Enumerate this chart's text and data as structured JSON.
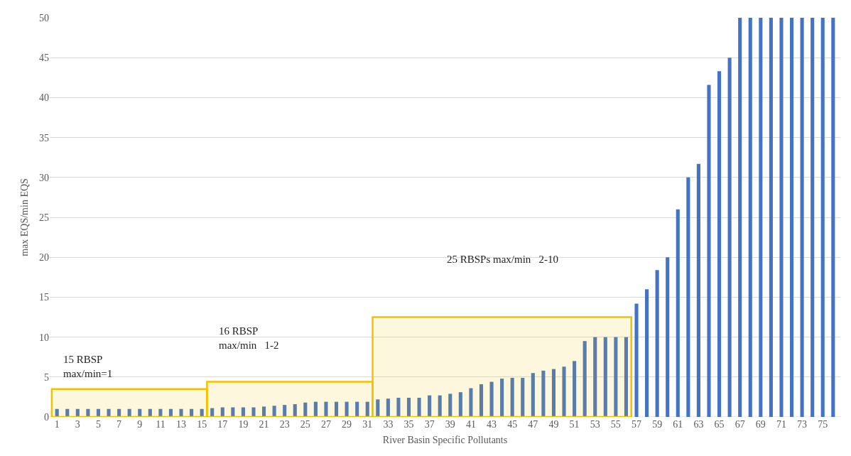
{
  "chart_data": {
    "type": "bar",
    "xlabel": "River Basin Specific Pollutants",
    "ylabel": "max EQS/min EQS",
    "x": [
      1,
      2,
      3,
      4,
      5,
      6,
      7,
      8,
      9,
      10,
      11,
      12,
      13,
      14,
      15,
      16,
      17,
      18,
      19,
      20,
      21,
      22,
      23,
      24,
      25,
      26,
      27,
      28,
      29,
      30,
      31,
      32,
      33,
      34,
      35,
      36,
      37,
      38,
      39,
      40,
      41,
      42,
      43,
      44,
      45,
      46,
      47,
      48,
      49,
      50,
      51,
      52,
      53,
      54,
      55,
      56,
      57,
      58,
      59,
      60,
      61,
      62,
      63,
      64,
      65,
      66,
      67,
      68,
      69,
      70,
      71,
      72,
      73,
      74,
      75,
      76
    ],
    "values": [
      1,
      1,
      1,
      1,
      1,
      1,
      1,
      1,
      1,
      1,
      1,
      1,
      1,
      1,
      1,
      1.1,
      1.2,
      1.2,
      1.2,
      1.2,
      1.3,
      1.4,
      1.5,
      1.6,
      1.8,
      1.9,
      1.9,
      1.9,
      1.9,
      1.9,
      1.9,
      2.2,
      2.3,
      2.4,
      2.4,
      2.4,
      2.7,
      2.7,
      2.9,
      3.1,
      3.6,
      4.1,
      4.4,
      4.8,
      4.9,
      4.9,
      5.5,
      5.8,
      6,
      6.3,
      7,
      9.5,
      10,
      10,
      10,
      10,
      14.2,
      16,
      18.4,
      20,
      26,
      30,
      31.7,
      41.6,
      43.3,
      45,
      50,
      50,
      50,
      50,
      50,
      50,
      50,
      50,
      50,
      50
    ],
    "color": "#4472c4",
    "xlim": [
      0.3,
      76.7
    ],
    "xticks": [
      1,
      3,
      5,
      7,
      9,
      11,
      13,
      15,
      17,
      19,
      21,
      23,
      25,
      27,
      29,
      31,
      33,
      35,
      37,
      39,
      41,
      43,
      45,
      47,
      49,
      51,
      53,
      55,
      57,
      59,
      61,
      63,
      65,
      67,
      69,
      71,
      73,
      75
    ],
    "ylim": [
      0,
      50
    ],
    "yticks": [
      0,
      5,
      10,
      15,
      20,
      25,
      30,
      35,
      40,
      45,
      50
    ],
    "grid": "y",
    "bands": [
      {
        "axis": "x",
        "from": 0.5,
        "to": 15.5,
        "color": "#f2c200"
      },
      {
        "axis": "x",
        "from": 15.5,
        "to": 31.5,
        "color": "#f2c200"
      },
      {
        "axis": "x",
        "from": 31.5,
        "to": 56.5,
        "color": "#f2c200"
      }
    ],
    "annotations": [
      "15 RBSP\nmax/min=1",
      "16 RBSP\nmax/min   1-2",
      "25 RBSPs max/min   2-10"
    ]
  }
}
